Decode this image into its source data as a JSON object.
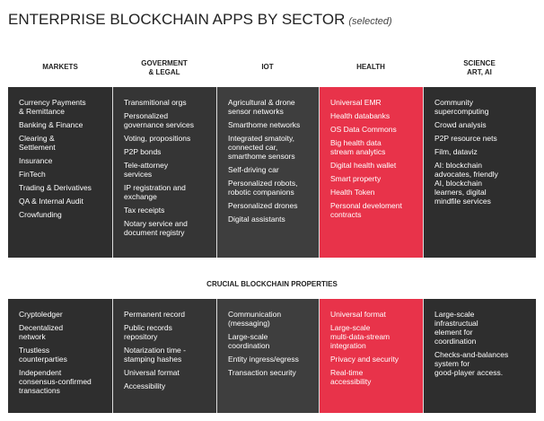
{
  "header": {
    "title": "ENTERPRISE BLOCKCHAIN APPS BY SECTOR",
    "subtitle": "(selected)"
  },
  "sectors": [
    {
      "name": [
        "MARKETS"
      ],
      "items": [
        [
          "Currency Payments",
          "& Remittance"
        ],
        [
          "Banking & Finance"
        ],
        [
          "Clearing &",
          "Settlement"
        ],
        [
          "Insurance"
        ],
        [
          "FinTech"
        ],
        [
          "Trading & Derivatives"
        ],
        [
          "QA & Internal Audit"
        ],
        [
          "Crowfunding"
        ]
      ]
    },
    {
      "name": [
        "GOVERMENT",
        "& LEGAL"
      ],
      "items": [
        [
          "Transmitional orgs"
        ],
        [
          "Personalized",
          "governance services"
        ],
        [
          "Voting, propositions"
        ],
        [
          "P2P bonds"
        ],
        [
          "Tele-attorney",
          "services"
        ],
        [
          "IP registration and",
          "exchange"
        ],
        [
          "Tax receipts"
        ],
        [
          "Notary service and",
          "document registry"
        ]
      ]
    },
    {
      "name": [
        "IOT"
      ],
      "items": [
        [
          "Agricultural & drone",
          "sensor networks"
        ],
        [
          "Smarthome networks"
        ],
        [
          "Integrated smatoity,",
          "connected car,",
          "smarthome sensors"
        ],
        [
          "Self-driving car"
        ],
        [
          "Personalized robots,",
          "robotic companions"
        ],
        [
          "Personalized drones"
        ],
        [
          "Digital assistants"
        ]
      ]
    },
    {
      "name": [
        "HEALTH"
      ],
      "items": [
        [
          "Universal EMR"
        ],
        [
          "Health databanks"
        ],
        [
          "OS Data Commons"
        ],
        [
          "Big health data",
          "stream analytics"
        ],
        [
          "Digital health wallet"
        ],
        [
          "Smart property"
        ],
        [
          "Health Token"
        ],
        [
          "Personal develoment",
          "contracts"
        ]
      ]
    },
    {
      "name": [
        "SCIENCE",
        "ART, AI"
      ],
      "items": [
        [
          "Community",
          "supercomputing"
        ],
        [
          "Crowd analysis"
        ],
        [
          "P2P resource nets"
        ],
        [
          "Film, dataviz"
        ],
        [
          "AI: blockchain",
          "advocates, friendly",
          "AI, blockchain",
          "learners, digital",
          "mindfile services"
        ]
      ]
    }
  ],
  "properties": {
    "title": "CRUCIAL BLOCKCHAIN PROPERTIES",
    "columns": [
      [
        [
          "Cryptoledger"
        ],
        [
          "Decentalized",
          "network"
        ],
        [
          "Trustless",
          "counterparties"
        ],
        [
          "Independent",
          "consensus-confirmed",
          "transactions"
        ]
      ],
      [
        [
          "Permanent record"
        ],
        [
          "Public records",
          "repository"
        ],
        [
          "Notarization time -",
          "stamping hashes"
        ],
        [
          "Universal format"
        ],
        [
          "Accessibility"
        ]
      ],
      [
        [
          "Communication",
          "(messaging)"
        ],
        [
          "Large-scale",
          "coordination"
        ],
        [
          "Entity ingress/egress"
        ],
        [
          "Transaction security"
        ]
      ],
      [
        [
          "Universal format"
        ],
        [
          "Large-scale",
          "multi-data-stream",
          "integration"
        ],
        [
          "Privacy and security"
        ],
        [
          "Real-time",
          "accessibility"
        ]
      ],
      [
        [
          "Large-scale",
          "infrastructual",
          "element for",
          "coordination"
        ],
        [
          "Checks-and-balances",
          "system for",
          "good-player access."
        ]
      ]
    ]
  }
}
